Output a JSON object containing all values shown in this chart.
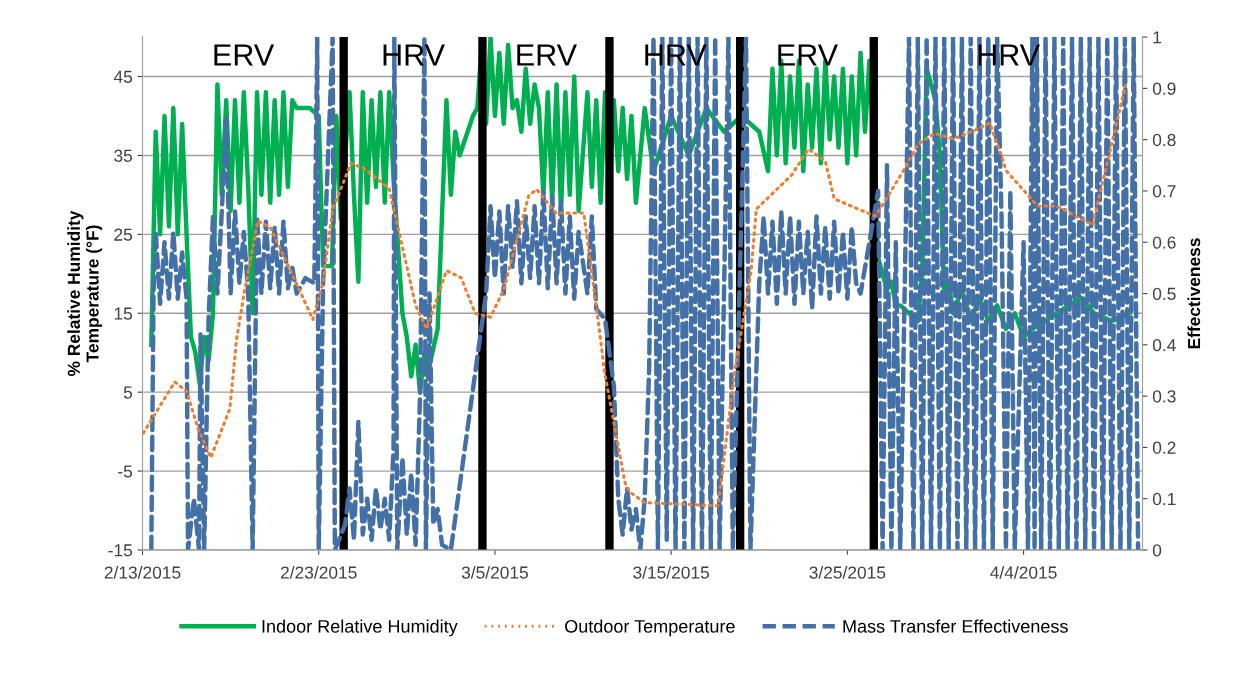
{
  "chart_data": {
    "type": "line",
    "ylabel": "% Relative Humidity\nTemperature (°F)",
    "y2label": "Effectiveness",
    "xlim": [
      "2015-02-13",
      "2015-04-10T18:00"
    ],
    "xticks": [
      {
        "value": "2015-02-13",
        "label": "2/13/2015"
      },
      {
        "value": "2015-02-23",
        "label": "2/23/2015"
      },
      {
        "value": "2015-03-05",
        "label": "3/5/2015"
      },
      {
        "value": "2015-03-15",
        "label": "3/15/2015"
      },
      {
        "value": "2015-03-25",
        "label": "3/25/2015"
      },
      {
        "value": "2015-04-04",
        "label": "4/4/2015"
      }
    ],
    "ylim": [
      -15,
      50
    ],
    "yticks": [
      -15,
      -5,
      5,
      15,
      25,
      35,
      45
    ],
    "y2lim": [
      0,
      1
    ],
    "y2ticks": [
      0,
      0.1,
      0.2,
      0.3,
      0.4,
      0.5,
      0.6,
      0.7,
      0.8,
      0.9,
      1
    ],
    "grid": "y",
    "legend": "bottom",
    "ref_lines": [
      {
        "axis": "x",
        "value": "2015-02-24T10:00",
        "color": "#000000"
      },
      {
        "axis": "x",
        "value": "2015-03-04T07:00",
        "color": "#000000"
      },
      {
        "axis": "x",
        "value": "2015-03-11T12:00",
        "color": "#000000"
      },
      {
        "axis": "x",
        "value": "2015-03-18T22:00",
        "color": "#000000"
      },
      {
        "axis": "x",
        "value": "2015-03-26T12:00",
        "color": "#000000"
      }
    ],
    "annotations": [
      "ERV",
      "HRV",
      "ERV",
      "HRV",
      "ERV",
      "HRV"
    ],
    "series": [
      {
        "name": "Indoor Relative Humidity",
        "color": "#00b050",
        "line_style": "solid",
        "x": [
          "2015-02-13T12:00",
          "2015-02-13T18:00",
          "2015-02-14T00:00",
          "2015-02-14T06:00",
          "2015-02-14T12:00",
          "2015-02-14T18:00",
          "2015-02-15T00:00",
          "2015-02-15T06:00",
          "2015-02-15T12:00",
          "2015-02-15T18:00",
          "2015-02-16T00:00",
          "2015-02-16T06:00",
          "2015-02-16T12:00",
          "2015-02-16T18:00",
          "2015-02-17T00:00",
          "2015-02-17T06:00",
          "2015-02-17T12:00",
          "2015-02-17T18:00",
          "2015-02-18T00:00",
          "2015-02-18T06:00",
          "2015-02-18T12:00",
          "2015-02-18T18:00",
          "2015-02-19T00:00",
          "2015-02-19T06:00",
          "2015-02-19T12:00",
          "2015-02-19T18:00",
          "2015-02-20T00:00",
          "2015-02-20T06:00",
          "2015-02-20T12:00",
          "2015-02-20T18:00",
          "2015-02-21T00:00",
          "2015-02-21T06:00",
          "2015-02-21T12:00",
          "2015-02-21T18:00",
          "2015-02-22T12:00",
          "2015-02-23T00:00",
          "2015-02-23T06:00",
          "2015-02-23T18:00",
          "2015-02-24T00:00",
          "2015-02-24T06:00",
          "2015-02-24T18:00",
          "2015-02-25T00:00",
          "2015-02-25T06:00",
          "2015-02-25T12:00",
          "2015-02-25T18:00",
          "2015-02-26T00:00",
          "2015-02-26T06:00",
          "2015-02-26T12:00",
          "2015-02-26T18:00",
          "2015-02-27T00:00",
          "2015-02-27T06:00",
          "2015-02-27T18:00",
          "2015-02-28T00:00",
          "2015-02-28T06:00",
          "2015-02-28T12:00",
          "2015-02-28T18:00",
          "2015-03-01T00:00",
          "2015-03-01T06:00",
          "2015-03-01T18:00",
          "2015-03-02T06:00",
          "2015-03-02T12:00",
          "2015-03-02T18:00",
          "2015-03-03T00:00",
          "2015-03-03T18:00",
          "2015-03-04T00:00",
          "2015-03-04T06:00",
          "2015-03-04T12:00",
          "2015-03-04T18:00",
          "2015-03-05T00:00",
          "2015-03-05T06:00",
          "2015-03-05T12:00",
          "2015-03-05T18:00",
          "2015-03-06T00:00",
          "2015-03-06T06:00",
          "2015-03-06T12:00",
          "2015-03-06T18:00",
          "2015-03-07T00:00",
          "2015-03-07T06:00",
          "2015-03-07T12:00",
          "2015-03-07T18:00",
          "2015-03-08T00:00",
          "2015-03-08T06:00",
          "2015-03-08T12:00",
          "2015-03-08T18:00",
          "2015-03-09T00:00",
          "2015-03-09T06:00",
          "2015-03-09T12:00",
          "2015-03-09T18:00",
          "2015-03-10T06:00",
          "2015-03-10T12:00",
          "2015-03-10T18:00",
          "2015-03-11T00:00",
          "2015-03-11T06:00",
          "2015-03-11T12:00",
          "2015-03-11T18:00",
          "2015-03-12T00:00",
          "2015-03-12T06:00",
          "2015-03-12T12:00",
          "2015-03-12T18:00",
          "2015-03-13T00:00",
          "2015-03-13T12:00",
          "2015-03-14T00:00",
          "2015-03-15T00:00",
          "2015-03-16T00:00",
          "2015-03-17T00:00",
          "2015-03-18T00:00",
          "2015-03-19T00:00",
          "2015-03-20T00:00",
          "2015-03-20T12:00",
          "2015-03-20T18:00",
          "2015-03-21T00:00",
          "2015-03-21T06:00",
          "2015-03-21T12:00",
          "2015-03-21T18:00",
          "2015-03-22T00:00",
          "2015-03-22T06:00",
          "2015-03-22T12:00",
          "2015-03-22T18:00",
          "2015-03-23T00:00",
          "2015-03-23T06:00",
          "2015-03-23T12:00",
          "2015-03-23T18:00",
          "2015-03-24T00:00",
          "2015-03-24T06:00",
          "2015-03-24T12:00",
          "2015-03-24T18:00",
          "2015-03-25T00:00",
          "2015-03-25T06:00",
          "2015-03-25T12:00",
          "2015-03-25T18:00",
          "2015-03-26T00:00",
          "2015-03-26T06:00",
          "2015-03-26T12:00",
          "2015-03-26T18:00",
          "2015-03-27T00:00",
          "2015-03-27T06:00",
          "2015-03-27T12:00",
          "2015-03-27T18:00",
          "2015-03-28T00:00",
          "2015-03-28T12:00",
          "2015-03-29T00:00",
          "2015-03-29T06:00",
          "2015-03-29T12:00",
          "2015-03-30T00:00",
          "2015-03-30T06:00",
          "2015-03-30T12:00",
          "2015-03-30T18:00",
          "2015-03-31T00:00",
          "2015-03-31T12:00",
          "2015-04-01T00:00",
          "2015-04-01T12:00",
          "2015-04-02T00:00",
          "2015-04-02T12:00",
          "2015-04-03T00:00",
          "2015-04-03T12:00",
          "2015-04-04T00:00",
          "2015-04-04T12:00",
          "2015-04-07T06:00",
          "2015-04-08T00:00",
          "2015-04-09T00:00",
          "2015-04-10T00:00"
        ],
        "values": [
          11,
          38,
          25,
          40,
          26,
          41,
          25,
          39,
          25,
          12,
          10,
          6,
          12,
          9,
          15,
          44,
          30,
          42,
          28,
          42,
          29,
          43,
          31,
          15,
          43,
          30,
          43,
          29,
          42,
          30,
          43,
          31,
          42,
          41,
          41,
          40,
          21,
          21,
          40,
          27,
          43,
          30,
          19,
          43,
          29,
          42,
          31,
          43,
          29,
          43,
          32,
          15,
          12,
          7,
          11,
          5,
          10,
          8,
          13,
          42,
          30,
          38,
          35,
          40,
          41,
          49,
          39,
          50,
          40,
          48,
          39,
          49,
          41,
          42,
          38,
          46,
          39,
          44,
          41,
          30,
          43,
          29,
          44,
          28,
          43,
          30,
          45,
          28,
          43,
          31,
          42,
          29,
          43,
          30,
          42,
          33,
          41,
          32,
          40,
          29,
          41,
          33,
          40,
          35,
          41,
          38,
          40,
          38,
          33,
          46,
          35,
          47,
          34,
          45,
          36,
          47,
          33,
          44,
          36,
          46,
          34,
          47,
          37,
          45,
          36,
          46,
          34,
          45,
          35,
          48,
          38,
          47,
          35,
          22,
          20,
          18,
          19,
          16,
          16,
          15,
          14,
          20,
          46,
          42,
          35,
          17,
          19,
          15,
          18,
          14,
          17,
          14,
          16,
          13,
          15,
          12,
          13,
          17,
          15,
          14,
          15
        ]
      },
      {
        "name": "Outdoor Temperature",
        "color": "#ed7d31",
        "line_style": "dotted",
        "x": [
          "2015-02-13T01:00",
          "2015-02-14T20:00",
          "2015-02-15T12:00",
          "2015-02-16T04:00",
          "2015-02-16T21:00",
          "2015-02-17T23:00",
          "2015-02-18T08:00",
          "2015-02-18T18:00",
          "2015-02-19T13:00",
          "2015-02-20T06:00",
          "2015-02-22T01:00",
          "2015-02-22T16:00",
          "2015-02-23T06:00",
          "2015-02-23T19:00",
          "2015-02-24T20:00",
          "2015-02-25T13:00",
          "2015-02-27T00:00",
          "2015-02-27T17:00",
          "2015-02-28T12:00",
          "2015-03-01T03:00",
          "2015-03-02T06:00",
          "2015-03-03T02:00",
          "2015-03-03T21:00",
          "2015-03-04T18:00",
          "2015-03-05T12:00",
          "2015-03-06T22:00",
          "2015-03-07T09:00",
          "2015-03-08T11:00",
          "2015-03-10T01:00",
          "2015-03-10T15:00",
          "2015-03-11T00:00",
          "2015-03-11T05:00",
          "2015-03-12T09:00",
          "2015-03-12T15:00",
          "2015-03-13T12:00",
          "2015-03-17T16:00",
          "2015-03-18T14:00",
          "2015-03-19T13:00",
          "2015-03-19T20:00",
          "2015-03-21T20:00",
          "2015-03-22T19:00",
          "2015-03-23T18:00",
          "2015-03-24T06:00",
          "2015-03-26T14:00",
          "2015-03-27T05:00",
          "2015-03-28T04:00",
          "2015-03-29T00:00",
          "2015-03-29T23:00",
          "2015-03-31T00:00",
          "2015-04-01T06:00",
          "2015-04-02T02:00",
          "2015-04-03T01:00",
          "2015-04-04T19:00",
          "2015-04-05T21:00",
          "2015-04-07T22:00",
          "2015-04-09T19:00"
        ],
        "values": [
          -0.2,
          6.3,
          5.1,
          0.3,
          -3.3,
          2.9,
          11.6,
          17.3,
          26.7,
          25.9,
          17.3,
          14.2,
          19,
          28.2,
          34,
          33.4,
          30.8,
          23.8,
          16,
          13,
          20.4,
          19.5,
          15,
          14.5,
          18,
          29.9,
          30.7,
          27.7,
          27.7,
          18,
          11.6,
          7.7,
          -6.4,
          -7.6,
          -9,
          -9.4,
          7.2,
          20.4,
          28.2,
          32.5,
          35.8,
          34.3,
          29.5,
          27.3,
          29.5,
          33,
          36.4,
          37.8,
          37.1,
          38.2,
          39.1,
          33,
          28.6,
          28.6,
          26.2,
          43.9
        ]
      },
      {
        "name": "Mass Transfer Effectiveness",
        "color": "#4470a8",
        "line_style": "dashed",
        "axis": "y2",
        "x": [
          "2015-02-13T12:00",
          "2015-02-13T15:00",
          "2015-02-13T18:00",
          "2015-02-14T00:00",
          "2015-02-14T06:00",
          "2015-02-14T12:00",
          "2015-02-14T18:00",
          "2015-02-15T00:00",
          "2015-02-15T06:00",
          "2015-02-15T12:00",
          "2015-02-15T14:00",
          "2015-02-15T22:00",
          "2015-02-16T05:00",
          "2015-02-16T07:00",
          "2015-02-16T12:00",
          "2015-02-16T18:00",
          "2015-02-17T00:00",
          "2015-02-17T06:00",
          "2015-02-17T12:00",
          "2015-02-17T18:00",
          "2015-02-18T00:00",
          "2015-02-18T06:00",
          "2015-02-18T12:00",
          "2015-02-18T18:00",
          "2015-02-19T00:00",
          "2015-02-19T06:00",
          "2015-02-19T12:00",
          "2015-02-19T18:00",
          "2015-02-20T00:00",
          "2015-02-20T06:00",
          "2015-02-20T12:00",
          "2015-02-20T18:00",
          "2015-02-21T00:00",
          "2015-02-21T06:00",
          "2015-02-21T12:00",
          "2015-02-21T18:00",
          "2015-02-22T06:00",
          "2015-02-22T18:00",
          "2015-02-22T22:00",
          "2015-02-23T00:00",
          "2015-02-23T06:00",
          "2015-02-23T19:00",
          "2015-02-23T22:00",
          "2015-02-24T12:00",
          "2015-02-24T18:00",
          "2015-02-25T00:00",
          "2015-02-25T06:00",
          "2015-02-25T12:00",
          "2015-02-25T18:00",
          "2015-02-26T00:00",
          "2015-02-26T06:00",
          "2015-02-26T12:00",
          "2015-02-26T18:00",
          "2015-02-27T00:00",
          "2015-02-27T06:00",
          "2015-02-27T07:00",
          "2015-02-27T11:00",
          "2015-02-27T18:00",
          "2015-02-28T00:00",
          "2015-02-28T06:00",
          "2015-02-28T12:00",
          "2015-02-28T18:00",
          "2015-03-01T00:00",
          "2015-03-01T02:00",
          "2015-03-01T07:00",
          "2015-03-01T12:00",
          "2015-03-01T18:00",
          "2015-03-02T00:00",
          "2015-03-02T12:00",
          "2015-03-04T12:00",
          "2015-03-04T18:00",
          "2015-03-05T00:00",
          "2015-03-05T06:00",
          "2015-03-05T12:00",
          "2015-03-05T18:00",
          "2015-03-06T00:00",
          "2015-03-06T06:00",
          "2015-03-06T12:00",
          "2015-03-06T18:00",
          "2015-03-07T00:00",
          "2015-03-07T06:00",
          "2015-03-07T12:00",
          "2015-03-07T18:00",
          "2015-03-08T00:00",
          "2015-03-08T06:00",
          "2015-03-08T12:00",
          "2015-03-08T18:00",
          "2015-03-09T00:00",
          "2015-03-09T06:00",
          "2015-03-09T12:00",
          "2015-03-09T18:00",
          "2015-03-10T06:00",
          "2015-03-10T12:00",
          "2015-03-10T18:00",
          "2015-03-11T06:00",
          "2015-03-11T18:00",
          "2015-03-12T00:00",
          "2015-03-12T06:00",
          "2015-03-12T12:00",
          "2015-03-12T18:00",
          "2015-03-13T00:00",
          "2015-03-13T06:00",
          "2015-03-13T12:00",
          "2015-03-13T18:00",
          "2015-03-14T00:00",
          "2015-03-14T06:00",
          "2015-03-14T12:00",
          "2015-03-14T18:00",
          "2015-03-15T00:00",
          "2015-03-15T06:00",
          "2015-03-15T12:00",
          "2015-03-15T18:00",
          "2015-03-16T00:00",
          "2015-03-16T06:00",
          "2015-03-16T12:00",
          "2015-03-16T18:00",
          "2015-03-17T00:00",
          "2015-03-17T06:00",
          "2015-03-17T12:00",
          "2015-03-17T18:00",
          "2015-03-18T06:00",
          "2015-03-18T12:00",
          "2015-03-19T06:00",
          "2015-03-19T12:00",
          "2015-03-20T00:00",
          "2015-03-20T06:00",
          "2015-03-20T12:00",
          "2015-03-20T18:00",
          "2015-03-21T00:00",
          "2015-03-21T06:00",
          "2015-03-21T12:00",
          "2015-03-21T18:00",
          "2015-03-22T00:00",
          "2015-03-22T06:00",
          "2015-03-22T12:00",
          "2015-03-22T18:00",
          "2015-03-23T00:00",
          "2015-03-23T06:00",
          "2015-03-23T12:00",
          "2015-03-23T18:00",
          "2015-03-24T00:00",
          "2015-03-24T06:00",
          "2015-03-24T12:00",
          "2015-03-24T18:00",
          "2015-03-25T00:00",
          "2015-03-25T06:00",
          "2015-03-25T12:00",
          "2015-03-25T18:00",
          "2015-03-26T18:00",
          "2015-03-27T00:00",
          "2015-03-27T06:00",
          "2015-03-27T12:00",
          "2015-03-27T18:00",
          "2015-03-28T00:00",
          "2015-03-28T12:00",
          "2015-03-28T18:00",
          "2015-03-29T00:00",
          "2015-03-29T06:00",
          "2015-03-29T12:00",
          "2015-03-29T18:00",
          "2015-03-30T00:00",
          "2015-03-30T06:00",
          "2015-03-30T12:00",
          "2015-03-30T18:00",
          "2015-03-31T00:00",
          "2015-03-31T06:00",
          "2015-03-31T12:00",
          "2015-03-31T18:00",
          "2015-04-01T00:00",
          "2015-04-01T06:00",
          "2015-04-01T12:00",
          "2015-04-01T18:00",
          "2015-04-02T00:00",
          "2015-04-02T06:00",
          "2015-04-02T12:00",
          "2015-04-02T18:00",
          "2015-04-03T00:00",
          "2015-04-03T06:00",
          "2015-04-03T12:00",
          "2015-04-04T00:00",
          "2015-04-04T06:00",
          "2015-04-04T12:00",
          "2015-04-04T15:00",
          "2015-04-04T18:00",
          "2015-04-05T00:00",
          "2015-04-05T06:00",
          "2015-04-05T12:00",
          "2015-04-05T18:00",
          "2015-04-06T00:00",
          "2015-04-06T06:00",
          "2015-04-06T12:00",
          "2015-04-06T18:00",
          "2015-04-07T00:00",
          "2015-04-07T06:00",
          "2015-04-07T12:00",
          "2015-04-07T18:00",
          "2015-04-08T00:00",
          "2015-04-08T06:00",
          "2015-04-08T12:00",
          "2015-04-08T18:00",
          "2015-04-09T00:00",
          "2015-04-09T06:00",
          "2015-04-09T12:00",
          "2015-04-09T18:00",
          "2015-04-10T00:00",
          "2015-04-10T06:00",
          "2015-04-10T12:00"
        ],
        "values": [
          0,
          0.5,
          0.62,
          0.48,
          0.6,
          0.49,
          0.62,
          0.49,
          0.58,
          0.49,
          0,
          0.1,
          0,
          0.42,
          0,
          0.45,
          0.65,
          0.5,
          0.66,
          0.84,
          0.5,
          0.66,
          0.52,
          0.62,
          0.5,
          0,
          0.65,
          0.5,
          0.64,
          0.51,
          0.63,
          0.5,
          0.64,
          0.51,
          0.55,
          0.5,
          0.53,
          0.52,
          1,
          0,
          0.52,
          1,
          0,
          0.05,
          0.12,
          0.02,
          0.25,
          0.03,
          0.1,
          0.02,
          0.12,
          0.04,
          0.1,
          0.02,
          0.2,
          1,
          0,
          0.18,
          0.03,
          0.15,
          0.01,
          0.3,
          1,
          0,
          0.5,
          0.05,
          0.08,
          0.01,
          0,
          0.5,
          0.67,
          0.53,
          0.66,
          0.5,
          0.67,
          0.55,
          0.68,
          0.52,
          0.65,
          0.53,
          0.67,
          0.52,
          0.7,
          0.51,
          0.69,
          0.52,
          0.68,
          0.5,
          0.65,
          0.49,
          0.62,
          0.5,
          0.65,
          0.47,
          0.45,
          0.32,
          0.1,
          0.03,
          0.12,
          0.04,
          0.08,
          0,
          0.1,
          0.35,
          1,
          0,
          1,
          0.02,
          1,
          0,
          1,
          0,
          1,
          0,
          1,
          0,
          1,
          0,
          1,
          0,
          1,
          0,
          1,
          0,
          0.52,
          0.65,
          0.5,
          0.64,
          0.48,
          0.66,
          0.5,
          0.65,
          0.48,
          0.64,
          0.5,
          0.62,
          0.47,
          0.65,
          0.5,
          0.63,
          0.49,
          0.64,
          0.5,
          0.62,
          0.49,
          0.63,
          0.52,
          0.5,
          0.7,
          0,
          0.75,
          0,
          0.6,
          0,
          1,
          0,
          1,
          0,
          1,
          0,
          1,
          0,
          1,
          0,
          1,
          0,
          1,
          0,
          1,
          0,
          1,
          0,
          1,
          0,
          1,
          0.65,
          0,
          0.7,
          0,
          0.6,
          0,
          1,
          0,
          1,
          0,
          1,
          0,
          1,
          0,
          1,
          0,
          1,
          0,
          1,
          0,
          1,
          0,
          1,
          0,
          1,
          0,
          1,
          0,
          1,
          0,
          1,
          0
        ]
      }
    ]
  }
}
